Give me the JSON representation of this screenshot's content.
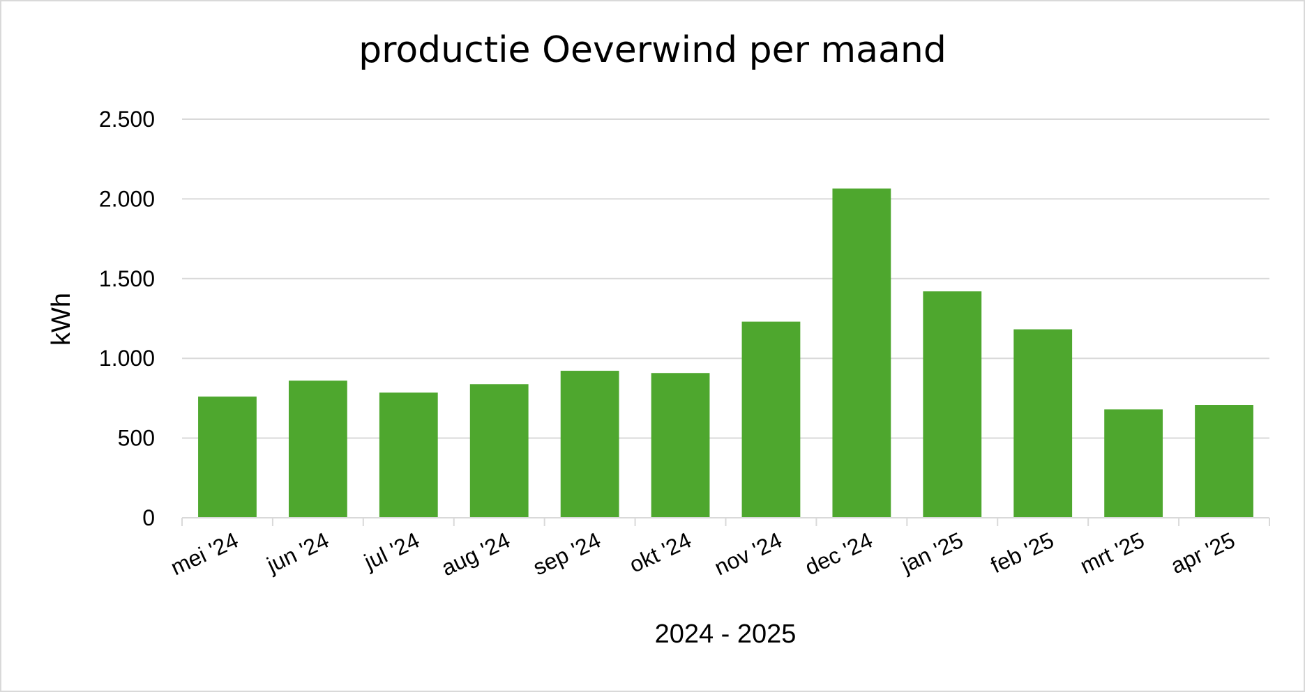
{
  "chart_data": {
    "type": "bar",
    "title": "productie Oeverwind per maand",
    "xlabel": "2024 - 2025",
    "ylabel": "kWh",
    "categories": [
      "mei '24",
      "jun '24",
      "jul '24",
      "aug '24",
      "sep '24",
      "okt '24",
      "nov '24",
      "dec '24",
      "jan '25",
      "feb '25",
      "mrt '25",
      "apr '25"
    ],
    "values": [
      760,
      860,
      785,
      838,
      922,
      908,
      1230,
      2065,
      1420,
      1182,
      680,
      708
    ],
    "ylim": [
      0,
      2500
    ],
    "yticks": [
      0,
      500,
      1000,
      1500,
      2000,
      2500
    ],
    "ytick_labels": [
      "0",
      "500",
      "1.000",
      "1.500",
      "2.000",
      "2.500"
    ],
    "grid": true,
    "legend": "none",
    "bar_color": "#4ea72e",
    "gridline_color": "#d9d9d9"
  }
}
